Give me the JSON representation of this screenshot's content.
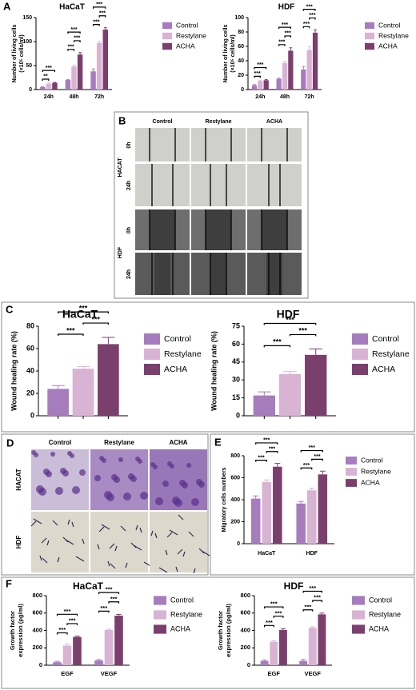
{
  "chart_data": [
    {
      "type": "bar",
      "panel": "A",
      "title": "HaCaT",
      "ylabel": [
        "Number of living cells",
        "(×10⁵ cells/ml)"
      ],
      "categories": [
        "24h",
        "48h",
        "72h"
      ],
      "ylim": [
        0,
        150
      ],
      "yticks": [
        0,
        50,
        100,
        150
      ],
      "series": [
        {
          "name": "Control",
          "color": "#a77cbd",
          "values": [
            5,
            20,
            38
          ],
          "errors": [
            1,
            1,
            5
          ]
        },
        {
          "name": "Restylane",
          "color": "#d9b3d3",
          "values": [
            12,
            48,
            97
          ],
          "errors": [
            2,
            3,
            3
          ]
        },
        {
          "name": "ACHA",
          "color": "#7b3f6e",
          "values": [
            14,
            73,
            125
          ],
          "errors": [
            1,
            4,
            4
          ]
        }
      ],
      "significance": [
        {
          "category": "24h",
          "pair": [
            "Control",
            "Restylane"
          ],
          "label": "**"
        },
        {
          "category": "24h",
          "pair": [
            "Control",
            "ACHA"
          ],
          "label": "***"
        },
        {
          "category": "48h",
          "pair": [
            "Control",
            "Restylane"
          ],
          "label": "***"
        },
        {
          "category": "48h",
          "pair": [
            "Restylane",
            "ACHA"
          ],
          "label": "***"
        },
        {
          "category": "48h",
          "pair": [
            "Control",
            "ACHA"
          ],
          "label": "***"
        },
        {
          "category": "72h",
          "pair": [
            "Control",
            "Restylane"
          ],
          "label": "***"
        },
        {
          "category": "72h",
          "pair": [
            "Restylane",
            "ACHA"
          ],
          "label": "***"
        },
        {
          "category": "72h",
          "pair": [
            "Control",
            "ACHA"
          ],
          "label": "***"
        }
      ]
    },
    {
      "type": "bar",
      "title": "HDF",
      "ylabel": [
        "Number of living cells",
        "(×10⁵ cells/ml)"
      ],
      "categories": [
        "24h",
        "48h",
        "72h"
      ],
      "ylim": [
        0,
        100
      ],
      "yticks": [
        0,
        20,
        40,
        60,
        80,
        100
      ],
      "series": [
        {
          "name": "Control",
          "color": "#a77cbd",
          "values": [
            6,
            15,
            28
          ],
          "errors": [
            1,
            1,
            4
          ]
        },
        {
          "name": "Restylane",
          "color": "#d9b3d3",
          "values": [
            12,
            37,
            55
          ],
          "errors": [
            1,
            2,
            5
          ]
        },
        {
          "name": "ACHA",
          "color": "#7b3f6e",
          "values": [
            13,
            54,
            79
          ],
          "errors": [
            1,
            4,
            4
          ]
        }
      ],
      "significance": [
        {
          "category": "24h",
          "pair": [
            "Control",
            "Restylane"
          ],
          "label": "***"
        },
        {
          "category": "24h",
          "pair": [
            "Control",
            "ACHA"
          ],
          "label": "***"
        },
        {
          "category": "48h",
          "pair": [
            "Control",
            "Restylane"
          ],
          "label": "***"
        },
        {
          "category": "48h",
          "pair": [
            "Restylane",
            "ACHA"
          ],
          "label": "***"
        },
        {
          "category": "48h",
          "pair": [
            "Control",
            "ACHA"
          ],
          "label": "***"
        },
        {
          "category": "72h",
          "pair": [
            "Control",
            "Restylane"
          ],
          "label": "***"
        },
        {
          "category": "72h",
          "pair": [
            "Restylane",
            "ACHA"
          ],
          "label": "***"
        },
        {
          "category": "72h",
          "pair": [
            "Control",
            "ACHA"
          ],
          "label": "***"
        }
      ]
    },
    {
      "type": "bar",
      "panel": "C",
      "title": "HaCaT",
      "ylabel": [
        "Wound healing rate (%)"
      ],
      "categories": [
        null
      ],
      "ylim": [
        0,
        80
      ],
      "yticks": [
        0,
        20,
        40,
        60,
        80
      ],
      "series": [
        {
          "name": "Control",
          "color": "#a77cbd",
          "values": [
            24
          ],
          "errors": [
            3
          ]
        },
        {
          "name": "Restylane",
          "color": "#d9b3d3",
          "values": [
            42
          ],
          "errors": [
            2
          ]
        },
        {
          "name": "ACHA",
          "color": "#7b3f6e",
          "values": [
            64
          ],
          "errors": [
            6
          ]
        }
      ],
      "significance": [
        {
          "category": null,
          "pair": [
            "Control",
            "Restylane"
          ],
          "label": "***"
        },
        {
          "category": null,
          "pair": [
            "Restylane",
            "ACHA"
          ],
          "label": "***"
        },
        {
          "category": null,
          "pair": [
            "Control",
            "ACHA"
          ],
          "label": "***"
        }
      ]
    },
    {
      "type": "bar",
      "title": "HDF",
      "ylabel": [
        "Wound healing rate (%)"
      ],
      "categories": [
        null
      ],
      "ylim": [
        0,
        75
      ],
      "yticks": [
        0,
        15,
        30,
        45,
        60,
        75
      ],
      "series": [
        {
          "name": "Control",
          "color": "#a77cbd",
          "values": [
            17
          ],
          "errors": [
            3
          ]
        },
        {
          "name": "Restylane",
          "color": "#d9b3d3",
          "values": [
            35
          ],
          "errors": [
            2
          ]
        },
        {
          "name": "ACHA",
          "color": "#7b3f6e",
          "values": [
            51
          ],
          "errors": [
            5
          ]
        }
      ],
      "significance": [
        {
          "category": null,
          "pair": [
            "Control",
            "Restylane"
          ],
          "label": "***"
        },
        {
          "category": null,
          "pair": [
            "Restylane",
            "ACHA"
          ],
          "label": "***"
        },
        {
          "category": null,
          "pair": [
            "Control",
            "ACHA"
          ],
          "label": "***"
        }
      ]
    },
    {
      "type": "bar",
      "panel": "E",
      "ylabel": [
        "Migratory cells numbers"
      ],
      "categories": [
        "HaCaT",
        "HDF"
      ],
      "ylim": [
        0,
        800
      ],
      "yticks": [
        0,
        200,
        400,
        600,
        800
      ],
      "series": [
        {
          "name": "Control",
          "color": "#a77cbd",
          "values": [
            410,
            365
          ],
          "errors": [
            25,
            20
          ]
        },
        {
          "name": "Restylane",
          "color": "#d9b3d3",
          "values": [
            560,
            485
          ],
          "errors": [
            20,
            20
          ]
        },
        {
          "name": "ACHA",
          "color": "#7b3f6e",
          "values": [
            700,
            630
          ],
          "errors": [
            30,
            30
          ]
        }
      ],
      "significance": [
        {
          "category": "HaCaT",
          "pair": [
            "Control",
            "Restylane"
          ],
          "label": "***"
        },
        {
          "category": "HaCaT",
          "pair": [
            "Restylane",
            "ACHA"
          ],
          "label": "***"
        },
        {
          "category": "HaCaT",
          "pair": [
            "Control",
            "ACHA"
          ],
          "label": "***"
        },
        {
          "category": "HDF",
          "pair": [
            "Control",
            "Restylane"
          ],
          "label": "***"
        },
        {
          "category": "HDF",
          "pair": [
            "Restylane",
            "ACHA"
          ],
          "label": "***"
        },
        {
          "category": "HDF",
          "pair": [
            "Control",
            "ACHA"
          ],
          "label": "***"
        }
      ]
    },
    {
      "type": "bar",
      "panel": "F",
      "title": "HaCaT",
      "ylabel": [
        "Growth factor",
        "expression (pg/ml)"
      ],
      "categories": [
        "EGF",
        "VEGF"
      ],
      "ylim": [
        0,
        800
      ],
      "yticks": [
        0,
        200,
        400,
        600,
        800
      ],
      "series": [
        {
          "name": "Control",
          "color": "#a77cbd",
          "values": [
            35,
            55
          ],
          "errors": [
            10,
            10
          ]
        },
        {
          "name": "Restylane",
          "color": "#d9b3d3",
          "values": [
            225,
            405
          ],
          "errors": [
            20,
            10
          ]
        },
        {
          "name": "ACHA",
          "color": "#7b3f6e",
          "values": [
            325,
            570
          ],
          "errors": [
            10,
            15
          ]
        }
      ],
      "significance": [
        {
          "category": "EGF",
          "pair": [
            "Control",
            "Restylane"
          ],
          "label": "***"
        },
        {
          "category": "EGF",
          "pair": [
            "Restylane",
            "ACHA"
          ],
          "label": "***"
        },
        {
          "category": "EGF",
          "pair": [
            "Control",
            "ACHA"
          ],
          "label": "***"
        },
        {
          "category": "VEGF",
          "pair": [
            "Control",
            "Restylane"
          ],
          "label": "***"
        },
        {
          "category": "VEGF",
          "pair": [
            "Restylane",
            "ACHA"
          ],
          "label": "***"
        },
        {
          "category": "VEGF",
          "pair": [
            "Control",
            "ACHA"
          ],
          "label": "***"
        }
      ]
    },
    {
      "type": "bar",
      "title": "HDF",
      "ylabel": [
        "Growth factor",
        "expression (pg/ml)"
      ],
      "categories": [
        "EGF",
        "VEGF"
      ],
      "ylim": [
        0,
        800
      ],
      "yticks": [
        0,
        200,
        400,
        600,
        800
      ],
      "series": [
        {
          "name": "Control",
          "color": "#a77cbd",
          "values": [
            50,
            50
          ],
          "errors": [
            10,
            15
          ]
        },
        {
          "name": "Restylane",
          "color": "#d9b3d3",
          "values": [
            270,
            430
          ],
          "errors": [
            10,
            10
          ]
        },
        {
          "name": "ACHA",
          "color": "#7b3f6e",
          "values": [
            405,
            585
          ],
          "errors": [
            15,
            15
          ]
        }
      ],
      "significance": [
        {
          "category": "EGF",
          "pair": [
            "Control",
            "Restylane"
          ],
          "label": "***"
        },
        {
          "category": "EGF",
          "pair": [
            "Restylane",
            "ACHA"
          ],
          "label": "***"
        },
        {
          "category": "EGF",
          "pair": [
            "Control",
            "ACHA"
          ],
          "label": "***"
        },
        {
          "category": "VEGF",
          "pair": [
            "Control",
            "Restylane"
          ],
          "label": "***"
        },
        {
          "category": "VEGF",
          "pair": [
            "Restylane",
            "ACHA"
          ],
          "label": "***"
        },
        {
          "category": "VEGF",
          "pair": [
            "Control",
            "ACHA"
          ],
          "label": "***"
        }
      ]
    }
  ],
  "image_panels": [
    {
      "letter": "B",
      "columns": [
        "Control",
        "Restylane",
        "ACHA"
      ],
      "groups": [
        {
          "name": "HACAT",
          "rows": [
            "0h",
            "24h"
          ]
        },
        {
          "name": "HDF",
          "rows": [
            "0h",
            "24h"
          ]
        }
      ]
    },
    {
      "letter": "D",
      "columns": [
        "Control",
        "Restylane",
        "ACHA"
      ],
      "rows": [
        "HACAT",
        "HDF"
      ]
    }
  ]
}
